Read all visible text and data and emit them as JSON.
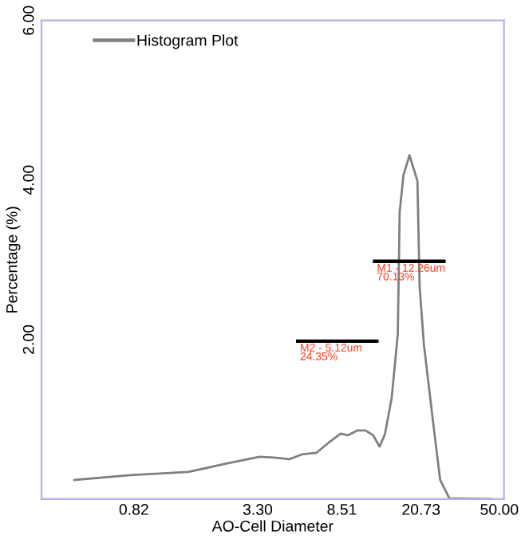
{
  "chart_data": {
    "type": "line",
    "xlabel": "AO-Cell Diameter",
    "ylabel": "Percentage (%)",
    "series": [
      {
        "name": "Histogram Plot",
        "color": "#808080",
        "x": [
          0.42,
          0.79,
          1.51,
          2.27,
          3.37,
          3.98,
          4.71,
          5.41,
          6.39,
          7.35,
          8.4,
          9.1,
          10.1,
          11.1,
          12.1,
          13.0,
          13.8,
          14.9,
          15.96,
          16.3,
          17.0,
          18.2,
          19.9,
          20.4,
          21.4,
          23.8,
          25.7,
          28.5,
          45.3
        ],
        "values": [
          0.24,
          0.3,
          0.34,
          0.44,
          0.53,
          0.52,
          0.5,
          0.56,
          0.58,
          0.71,
          0.82,
          0.8,
          0.86,
          0.86,
          0.8,
          0.66,
          0.81,
          1.27,
          2.07,
          3.6,
          4.06,
          4.31,
          3.99,
          2.67,
          1.94,
          0.94,
          0.24,
          0.01,
          0.0
        ]
      },
      {
        "color": "#000000",
        "x": [
          12.3,
          26.8
        ],
        "values": [
          2.98,
          2.98
        ]
      },
      {
        "color": "#000000",
        "x": [
          5.18,
          12.6
        ],
        "values": [
          1.98,
          1.98
        ]
      }
    ],
    "annotations": [
      {
        "text": "M1 - 12.26um\n70.13%",
        "x": 12.3,
        "y": 2.98
      },
      {
        "text": "M2 - 5.12um\n24.35%",
        "x": 5.18,
        "y": 1.98
      }
    ],
    "xlim": [
      0.29,
      52.7
    ],
    "log": "x",
    "xticks": [
      {
        "value": 0.82,
        "label": "0.82"
      },
      {
        "value": 3.3,
        "label": "3.30"
      },
      {
        "value": 8.51,
        "label": "8.51"
      },
      {
        "value": 20.73,
        "label": "20.73"
      },
      {
        "value": 50,
        "label": "50.00"
      }
    ],
    "ylim": [
      0,
      6
    ],
    "yticks": [
      {
        "value": 2,
        "label": "2.00"
      },
      {
        "value": 4,
        "label": "4.00"
      },
      {
        "value": 6,
        "label": "6.00"
      }
    ],
    "grid": false,
    "legend": "top",
    "marker": "none",
    "line_style": "solid"
  }
}
